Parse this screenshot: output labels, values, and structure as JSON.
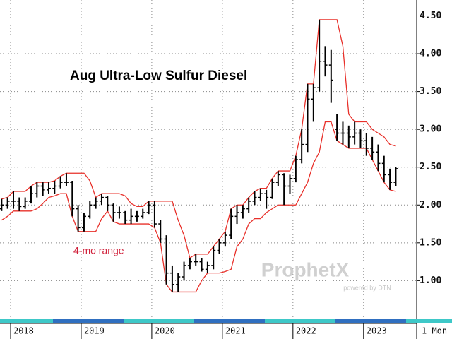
{
  "chart_data": {
    "type": "ohlc",
    "title": "Aug Ultra-Low Sulfur Diesel",
    "annotation": "4-mo range",
    "watermark": "ProphetX",
    "watermark_sub": "powered by DTN",
    "interval_label": "1 Mon",
    "categories": [
      null,
      null,
      "2018",
      null,
      null,
      null,
      null,
      null,
      null,
      null,
      null,
      null,
      null,
      null,
      "2019",
      null,
      null,
      null,
      null,
      null,
      null,
      null,
      null,
      null,
      null,
      null,
      "2020",
      null,
      null,
      null,
      null,
      null,
      null,
      null,
      null,
      null,
      null,
      null,
      "2021",
      null,
      null,
      null,
      null,
      null,
      null,
      null,
      null,
      null,
      null,
      null,
      "2022",
      null,
      null,
      null,
      null,
      null,
      null,
      null,
      null,
      null,
      null,
      null,
      "2023",
      null,
      null,
      null,
      null,
      null
    ],
    "open": [
      1.95,
      2.0,
      2.05,
      2.05,
      1.98,
      2.05,
      2.15,
      2.25,
      2.2,
      2.22,
      2.25,
      2.3,
      2.3,
      1.95,
      1.7,
      1.85,
      2.0,
      2.05,
      2.1,
      2.0,
      1.9,
      1.9,
      1.8,
      1.85,
      1.85,
      1.9,
      2.0,
      1.75,
      1.55,
      1.1,
      0.95,
      1.05,
      1.2,
      1.25,
      1.25,
      1.15,
      1.2,
      1.4,
      1.5,
      1.6,
      1.85,
      1.9,
      1.95,
      2.05,
      2.1,
      2.15,
      2.1,
      2.3,
      2.4,
      2.25,
      2.35,
      2.6,
      2.8,
      3.4,
      3.55,
      3.9,
      3.85,
      3.0,
      2.95,
      2.95,
      2.9,
      2.95,
      2.85,
      2.75,
      2.7,
      2.55,
      2.4,
      2.3
    ],
    "high": [
      2.08,
      2.1,
      2.18,
      2.1,
      2.1,
      2.25,
      2.3,
      2.3,
      2.3,
      2.32,
      2.38,
      2.42,
      2.32,
      2.0,
      1.9,
      2.05,
      2.1,
      2.15,
      2.12,
      2.02,
      1.98,
      1.92,
      1.95,
      1.92,
      1.95,
      2.05,
      2.05,
      1.8,
      1.6,
      1.2,
      1.1,
      1.25,
      1.3,
      1.35,
      1.3,
      1.25,
      1.45,
      1.55,
      1.65,
      1.95,
      2.0,
      2.0,
      2.1,
      2.18,
      2.22,
      2.2,
      2.35,
      2.45,
      2.42,
      2.4,
      2.65,
      3.0,
      3.6,
      3.6,
      4.45,
      4.1,
      4.05,
      3.2,
      3.1,
      3.05,
      3.1,
      3.0,
      2.95,
      2.9,
      2.8,
      2.65,
      2.48,
      2.5
    ],
    "low": [
      1.92,
      1.95,
      1.95,
      1.92,
      1.95,
      2.02,
      2.1,
      2.12,
      2.15,
      2.15,
      2.22,
      2.25,
      1.85,
      1.65,
      1.65,
      1.82,
      1.95,
      2.0,
      1.92,
      1.78,
      1.82,
      1.75,
      1.75,
      1.78,
      1.82,
      1.88,
      1.7,
      1.5,
      0.95,
      0.85,
      0.85,
      1.0,
      1.15,
      1.2,
      1.12,
      1.1,
      1.15,
      1.35,
      1.45,
      1.55,
      1.75,
      1.82,
      1.9,
      2.0,
      2.05,
      1.95,
      2.08,
      2.25,
      2.0,
      2.15,
      2.3,
      2.55,
      2.7,
      3.1,
      3.5,
      3.7,
      3.35,
      2.85,
      2.8,
      2.75,
      2.8,
      2.75,
      2.65,
      2.6,
      2.45,
      2.3,
      2.2,
      2.25
    ],
    "close": [
      2.0,
      2.05,
      2.05,
      1.98,
      2.05,
      2.15,
      2.25,
      2.2,
      2.22,
      2.25,
      2.3,
      2.3,
      1.95,
      1.7,
      1.85,
      2.0,
      2.05,
      2.1,
      2.0,
      1.9,
      1.9,
      1.8,
      1.85,
      1.85,
      1.9,
      2.0,
      1.75,
      1.55,
      1.1,
      0.95,
      1.05,
      1.2,
      1.25,
      1.25,
      1.15,
      1.2,
      1.4,
      1.5,
      1.6,
      1.85,
      1.9,
      1.95,
      2.05,
      2.1,
      2.15,
      2.1,
      2.3,
      2.4,
      2.25,
      2.35,
      2.6,
      2.8,
      3.4,
      3.55,
      3.9,
      3.85,
      3.65,
      2.95,
      2.95,
      2.9,
      2.95,
      2.85,
      2.75,
      2.7,
      2.55,
      2.4,
      2.3,
      2.48
    ],
    "color": "#000000",
    "channel": {
      "color": "#e8302a",
      "upper": [
        2.08,
        2.1,
        2.18,
        2.18,
        2.18,
        2.25,
        2.3,
        2.3,
        2.3,
        2.32,
        2.38,
        2.42,
        2.42,
        2.42,
        2.42,
        2.32,
        2.1,
        2.15,
        2.15,
        2.15,
        2.15,
        2.12,
        2.02,
        1.98,
        1.98,
        2.05,
        2.05,
        2.05,
        2.05,
        2.05,
        1.8,
        1.6,
        1.3,
        1.35,
        1.35,
        1.35,
        1.45,
        1.55,
        1.65,
        1.95,
        2.0,
        2.0,
        2.1,
        2.18,
        2.22,
        2.22,
        2.35,
        2.45,
        2.45,
        2.45,
        2.65,
        3.0,
        3.6,
        3.6,
        4.45,
        4.45,
        4.45,
        4.45,
        4.1,
        3.2,
        3.1,
        3.1,
        3.1,
        3.0,
        2.95,
        2.9,
        2.8,
        2.78
      ],
      "lower": [
        1.8,
        1.85,
        1.92,
        1.92,
        1.92,
        1.92,
        1.95,
        2.02,
        2.1,
        2.12,
        2.15,
        2.15,
        1.85,
        1.65,
        1.65,
        1.65,
        1.65,
        1.82,
        1.92,
        1.78,
        1.75,
        1.75,
        1.75,
        1.75,
        1.75,
        1.75,
        1.7,
        1.5,
        0.95,
        0.85,
        0.85,
        0.85,
        0.85,
        0.85,
        1.0,
        1.1,
        1.1,
        1.1,
        1.12,
        1.15,
        1.45,
        1.55,
        1.75,
        1.82,
        1.82,
        1.9,
        1.95,
        2.0,
        2.0,
        2.0,
        2.0,
        2.15,
        2.3,
        2.55,
        2.7,
        3.1,
        3.1,
        2.85,
        2.8,
        2.75,
        2.75,
        2.75,
        2.75,
        2.6,
        2.45,
        2.3,
        2.2,
        2.18
      ]
    },
    "ylim": [
      0.49,
      4.71
    ],
    "yticks": [
      {
        "value": 1,
        "label": "1.00"
      },
      {
        "value": 1.5,
        "label": "1.50"
      },
      {
        "value": 2,
        "label": "2.00"
      },
      {
        "value": 2.5,
        "label": "2.50"
      },
      {
        "value": 3,
        "label": "3.00"
      },
      {
        "value": 3.5,
        "label": "3.50"
      },
      {
        "value": 4,
        "label": "4.00"
      },
      {
        "value": 4.5,
        "label": "4.50"
      }
    ],
    "grid": true
  }
}
